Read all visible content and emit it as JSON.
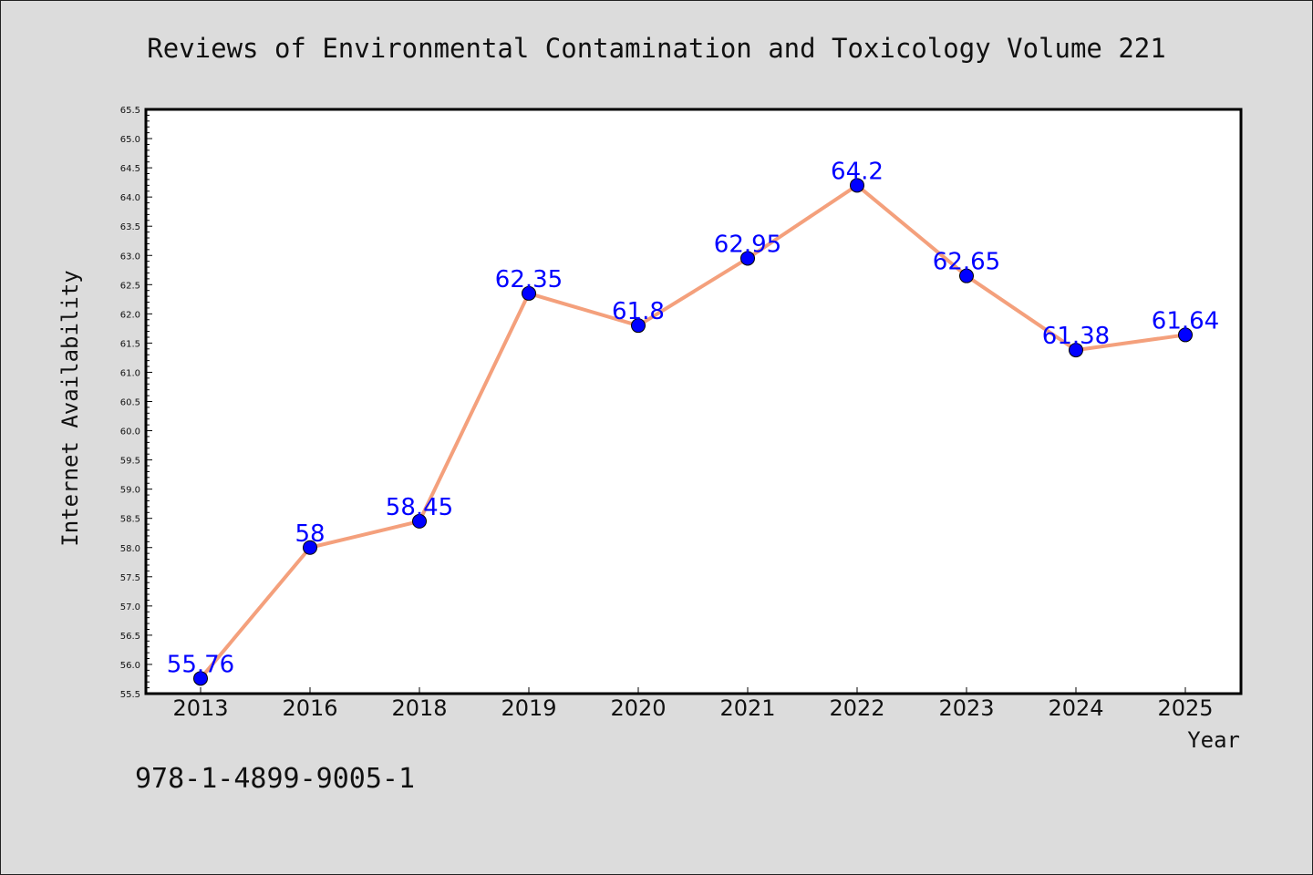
{
  "chart_data": {
    "type": "line",
    "title": "Reviews of Environmental Contamination and Toxicology Volume 221",
    "xlabel": "Year",
    "ylabel": "Internet Availability",
    "categories": [
      "2013",
      "2016",
      "2018",
      "2019",
      "2020",
      "2021",
      "2022",
      "2023",
      "2024",
      "2025"
    ],
    "values": [
      55.76,
      58,
      58.45,
      62.35,
      61.8,
      62.95,
      64.2,
      62.65,
      61.38,
      61.64
    ],
    "data_labels": [
      "55.76",
      "58",
      "58.45",
      "62.35",
      "61.8",
      "62.95",
      "64.2",
      "62.65",
      "61.38",
      "61.64"
    ],
    "ylim": [
      55.5,
      65.5
    ],
    "yticks": [
      "55.5",
      "56.0",
      "56.5",
      "57.0",
      "57.5",
      "58.0",
      "58.5",
      "59.0",
      "59.5",
      "60.0",
      "60.5",
      "61.0",
      "61.5",
      "62.0",
      "62.5",
      "63.0",
      "63.5",
      "64.0",
      "64.5",
      "65.0",
      "65.5"
    ],
    "grid": false,
    "legend": "none",
    "colors": {
      "line": "#f4a07c",
      "marker": "#0000ff",
      "data_label": "#0000ff",
      "plot_background": "#ffffff",
      "figure_background": "#dcdcdc"
    }
  },
  "footnote": "978-1-4899-9005-1"
}
